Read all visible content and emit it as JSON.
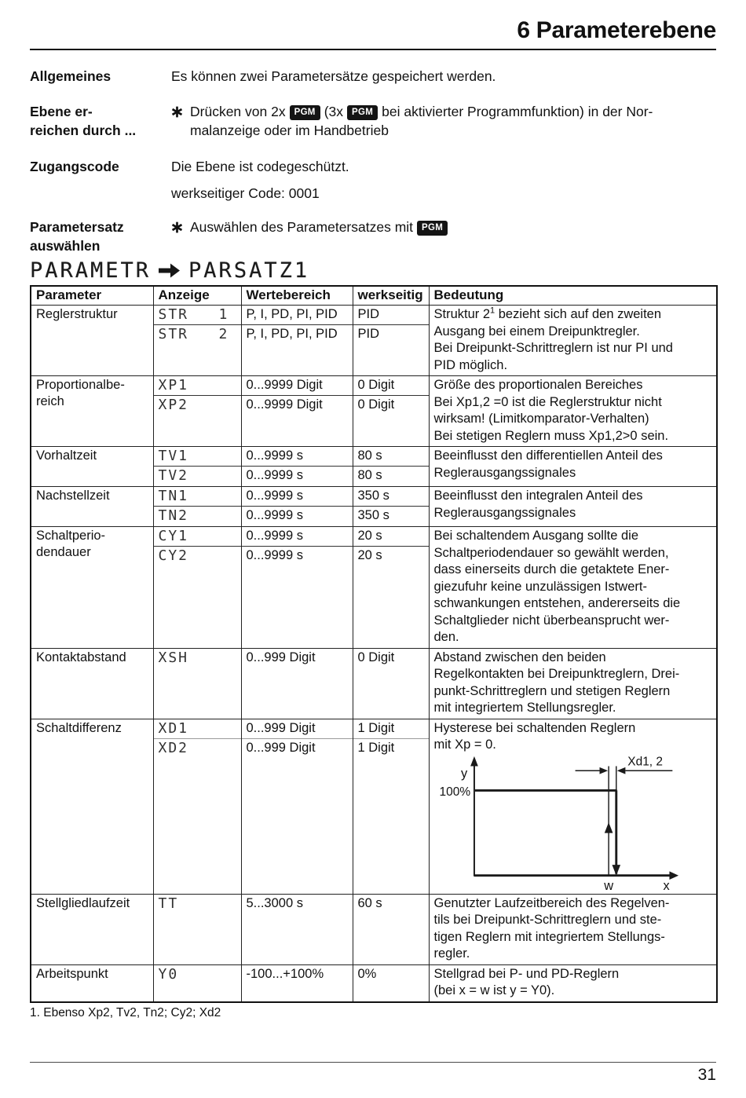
{
  "page": {
    "title": "6 Parameterebene",
    "footnote": "1. Ebenso Xp2, Tv2, Tn2; Cy2; Xd2",
    "page_number": "31"
  },
  "sections": {
    "allgemeines": {
      "label": "Allgemeines",
      "text": "Es können zwei Parametersätze gespeichert werden."
    },
    "ebene": {
      "label": "Ebene er-\nreichen durch ...",
      "part1": "Drücken von 2x",
      "pgm": "PGM",
      "part2": "(3x",
      "part3": "bei aktivierter Programmfunktion) in der Nor-",
      "line2": "malanzeige oder im Handbetrieb"
    },
    "zugangscode": {
      "label": "Zugangscode",
      "line1": "Die Ebene ist codegeschützt.",
      "line2": "werkseitiger Code: 0001"
    },
    "parametersatz": {
      "label": "Parametersatz\nauswählen",
      "text": "Auswählen des Parametersatzes mit",
      "pgm": "PGM"
    }
  },
  "display": {
    "left": "PARAMETR",
    "arrow_icon": "arrow-right-icon",
    "right": "PARSATZ1"
  },
  "table": {
    "headers": [
      "Parameter",
      "Anzeige",
      "Wertebereich",
      "werkseitig",
      "Bedeutung"
    ],
    "rows": [
      {
        "parameter": "Reglerstruktur",
        "subs": [
          {
            "anzeige": "STR   1",
            "wertebereich": "P, I, PD, PI, PID",
            "werkseitig": "PID"
          },
          {
            "anzeige": "STR   2",
            "wertebereich": "P, I, PD, PI, PID",
            "werkseitig": "PID"
          }
        ],
        "bedeutung_pre": "Struktur 2",
        "bedeutung_sup": "1",
        "bedeutung_post": " bezieht sich auf den zweiten\nAusgang bei einem Dreipunktregler.\nBei Dreipunkt-Schrittreglern ist nur PI und\nPID möglich."
      },
      {
        "parameter": "Proportionalbe-\nreich",
        "subs": [
          {
            "anzeige": "XP1",
            "wertebereich": "0...9999 Digit",
            "werkseitig": "0 Digit"
          },
          {
            "anzeige": "XP2",
            "wertebereich": "0...9999 Digit",
            "werkseitig": "0 Digit"
          }
        ],
        "bedeutung": "Größe des proportionalen Bereiches\nBei Xp1,2 =0 ist die Reglerstruktur nicht\nwirksam! (Limitkomparator-Verhalten)\nBei stetigen Reglern muss Xp1,2>0 sein."
      },
      {
        "parameter": "Vorhaltzeit",
        "subs": [
          {
            "anzeige": "TV1",
            "wertebereich": "0...9999 s",
            "werkseitig": "80 s"
          },
          {
            "anzeige": "TV2",
            "wertebereich": "0...9999 s",
            "werkseitig": "80 s"
          }
        ],
        "bedeutung": "Beeinflusst den differentiellen Anteil des\nReglerausgangssignales"
      },
      {
        "parameter": "Nachstellzeit",
        "subs": [
          {
            "anzeige": "TN1",
            "wertebereich": "0...9999 s",
            "werkseitig": "350 s"
          },
          {
            "anzeige": "TN2",
            "wertebereich": "0...9999 s",
            "werkseitig": "350 s"
          }
        ],
        "bedeutung": "Beeinflusst den integralen Anteil des\nReglerausgangssignales"
      },
      {
        "parameter": "Schaltperio-\ndendauer",
        "subs": [
          {
            "anzeige": "CY1",
            "wertebereich": "0...9999 s",
            "werkseitig": "20 s"
          },
          {
            "anzeige": "CY2",
            "wertebereich": "0...9999 s",
            "werkseitig": "20 s"
          }
        ],
        "bedeutung": "Bei schaltendem Ausgang sollte die\nSchaltperiodendauer so gewählt werden,\ndass einerseits durch die getaktete Ener-\ngiezufuhr keine unzulässigen Istwert-\nschwankungen entstehen, andererseits die\nSchaltglieder nicht überbeansprucht wer-\nden."
      },
      {
        "parameter": "Kontaktabstand",
        "subs": [
          {
            "anzeige": "XSH",
            "wertebereich": "0...999 Digit",
            "werkseitig": "0 Digit"
          }
        ],
        "bedeutung": "Abstand zwischen den beiden\nRegelkontakten bei Dreipunktreglern, Drei-\npunkt-Schrittreglern und stetigen Reglern\nmit integriertem Stellungsregler."
      },
      {
        "parameter": "Schaltdifferenz",
        "subs": [
          {
            "anzeige": "XD1",
            "wertebereich": "0...999 Digit",
            "werkseitig": "1 Digit"
          },
          {
            "anzeige": "XD2",
            "wertebereich": "0...999 Digit",
            "werkseitig": "1 Digit"
          }
        ],
        "bedeutung": "Hysterese bei schaltenden Reglern\nmit Xp = 0."
      },
      {
        "parameter": "Stellgliedlaufzeit",
        "subs": [
          {
            "anzeige": "TT",
            "wertebereich": "5...3000 s",
            "werkseitig": "60 s"
          }
        ],
        "bedeutung": "Genutzter Laufzeitbereich des Regelven-\ntils bei Dreipunkt-Schrittreglern und ste-\ntigen Reglern mit integriertem Stellungs-\nregler."
      },
      {
        "parameter": "Arbeitspunkt",
        "subs": [
          {
            "anzeige": "Y0",
            "wertebereich": "-100...+100%",
            "werkseitig": "0%"
          }
        ],
        "bedeutung": "Stellgrad bei P- und PD-Reglern\n(bei x = w ist y = Y0)."
      }
    ]
  },
  "diagram": {
    "y_axis_label": "y",
    "y_value_label": "100%",
    "dimension_label": "Xd1, 2",
    "setpoint_label": "w",
    "x_axis_label": "x"
  }
}
